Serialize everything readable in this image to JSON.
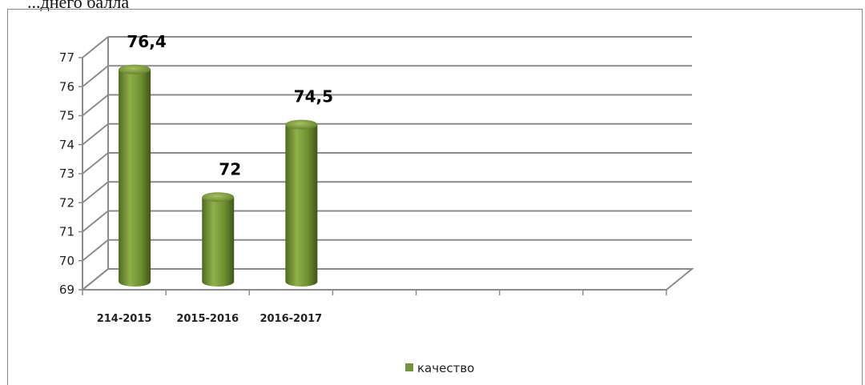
{
  "clipped_text": "...днего балла",
  "chart_data": {
    "type": "bar",
    "categories": [
      "214-2015",
      "2015-2016",
      "2016-2017"
    ],
    "series": [
      {
        "name": "качество",
        "values": [
          76.4,
          72,
          74.5
        ],
        "color": "#76923c"
      }
    ],
    "data_labels": [
      "76,4",
      "72",
      "74,5"
    ],
    "ylim": [
      69,
      77
    ],
    "yticks": [
      "69",
      "70",
      "71",
      "72",
      "73",
      "74",
      "75",
      "76",
      "77"
    ],
    "grid": true,
    "legend_position": "bottom",
    "bar_shape": "3d-cylinder"
  }
}
